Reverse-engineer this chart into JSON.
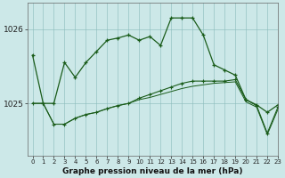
{
  "title": "Graphe pression niveau de la mer (hPa)",
  "bg_color": "#cce8e8",
  "grid_color": "#88bbbb",
  "line_color": "#1a5c1a",
  "xlim": [
    -0.5,
    23
  ],
  "ylim": [
    1024.3,
    1026.35
  ],
  "yticks": [
    1025,
    1026
  ],
  "xtick_labels": [
    "0",
    "1",
    "2",
    "3",
    "4",
    "5",
    "6",
    "7",
    "8",
    "9",
    "10",
    "11",
    "12",
    "13",
    "14",
    "15",
    "16",
    "17",
    "18",
    "19",
    "20",
    "21",
    "22",
    "23"
  ],
  "line1": [
    1025.65,
    1025.0,
    1025.0,
    1025.55,
    1025.35,
    1025.55,
    1025.7,
    1025.85,
    1025.88,
    1025.92,
    1025.85,
    1025.9,
    1025.78,
    1026.15,
    1026.15,
    1026.15,
    1025.92,
    1025.52,
    1025.45,
    1025.38,
    1025.05,
    1024.98,
    1024.88,
    1024.98
  ],
  "line2": [
    1025.0,
    1025.0,
    1024.72,
    1024.72,
    1024.8,
    1024.85,
    1024.88,
    1024.93,
    1024.97,
    1025.0,
    1025.07,
    1025.12,
    1025.17,
    1025.22,
    1025.27,
    1025.3,
    1025.3,
    1025.3,
    1025.3,
    1025.32,
    1025.05,
    1024.97,
    1024.6,
    1024.95
  ],
  "line3": [
    1025.0,
    1025.0,
    1024.72,
    1024.72,
    1024.8,
    1024.85,
    1024.88,
    1024.93,
    1024.97,
    1025.0,
    1025.05,
    1025.08,
    1025.12,
    1025.16,
    1025.2,
    1025.23,
    1025.25,
    1025.27,
    1025.28,
    1025.29,
    1025.02,
    1024.95,
    1024.58,
    1024.92
  ],
  "line1_markers": [
    0,
    1,
    2,
    3,
    4,
    5,
    6,
    7,
    8,
    9,
    10,
    11,
    12,
    13,
    14,
    15,
    16,
    17,
    18,
    19,
    20,
    21,
    22,
    23
  ],
  "line2_markers": [
    0,
    1,
    2,
    3,
    4,
    5,
    6,
    7,
    8,
    9,
    10,
    11,
    12,
    13,
    14,
    15,
    16,
    17,
    18,
    19,
    20,
    21,
    22,
    23
  ],
  "line3_markers": []
}
